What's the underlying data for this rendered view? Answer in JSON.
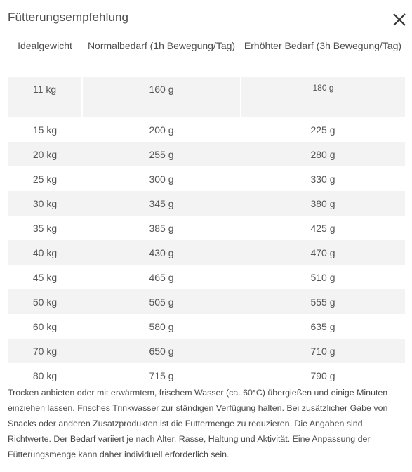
{
  "title": "Fütterungsempfehlung",
  "icons": {
    "close": "close-icon"
  },
  "table": {
    "headers": [
      "Idealgewicht",
      "Normalbedarf (1h Bewegung/Tag)",
      "Erhöhter Bedarf (3h Bewegung/Tag)"
    ],
    "rows": [
      [
        "11 kg",
        "160 g",
        "180 g"
      ],
      [
        "15 kg",
        "200 g",
        "225 g"
      ],
      [
        "20 kg",
        "255 g",
        "280 g"
      ],
      [
        "25 kg",
        "300 g",
        "330 g"
      ],
      [
        "30 kg",
        "345 g",
        "380 g"
      ],
      [
        "35 kg",
        "385 g",
        "425 g"
      ],
      [
        "40 kg",
        "430 g",
        "470 g"
      ],
      [
        "45 kg",
        "465 g",
        "510 g"
      ],
      [
        "50 kg",
        "505 g",
        "555 g"
      ],
      [
        "60 kg",
        "580 g",
        "635 g"
      ],
      [
        "70 kg",
        "650 g",
        "710 g"
      ],
      [
        "80 kg",
        "715 g",
        "790 g"
      ]
    ]
  },
  "note": "Trocken anbieten oder mit erwärmtem, frischem Wasser (ca. 60°C) übergießen und einige Minuten einziehen lassen. Frisches Trinkwasser zur ständigen Verfügung halten. Bei zusätzlicher Gabe von Snacks oder anderen Zusatzprodukten ist die Futtermenge zu reduzieren. Die Angaben sind Richtwerte. Der Bedarf variiert je nach Alter, Rasse, Haltung und Aktivität. Eine Anpassung der Fütterungsmenge kann daher individuell erforderlich sein."
}
